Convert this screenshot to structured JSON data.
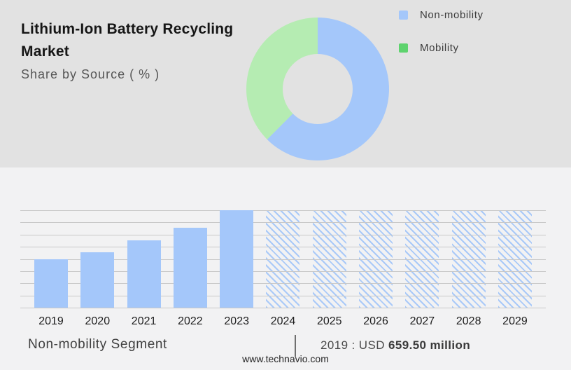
{
  "header": {
    "title": "Lithium-Ion Battery Recycling Market",
    "subtitle": "Share by Source ( % )"
  },
  "legend": {
    "items": [
      {
        "label": "Non-mobility",
        "marker_color": "#a4c7fa"
      },
      {
        "label": "Mobility",
        "marker_color": "#5ed36e"
      }
    ]
  },
  "footer": {
    "segment_label": "Non-mobility Segment",
    "separator": "|",
    "value_prefix": "2019 : USD ",
    "value_bold": "659.50 million",
    "website": "www.technavio.com"
  },
  "colors": {
    "top_background": "#e2e2e2",
    "bottom_background": "#f2f2f3",
    "bar_blue": "#a4c7fa",
    "donut_green": "#b5ecb2",
    "legend_green": "#5ed36e",
    "gridline": "#c8c8c8"
  },
  "chart_data": [
    {
      "type": "pie",
      "subtype": "donut",
      "title": "Lithium-Ion Battery Recycling Market — Share by Source ( % )",
      "labels": [
        "Non-mobility",
        "Mobility"
      ],
      "values_pct_estimated": [
        62.5,
        37.5
      ],
      "slice_colors": [
        "#a4c7fa",
        "#b5ecb2"
      ],
      "legend_position": "right",
      "start_angle_deg_from_top": 0,
      "direction": "clockwise"
    },
    {
      "type": "bar",
      "title": "Non-mobility Segment",
      "categories": [
        "2019",
        "2020",
        "2021",
        "2022",
        "2023",
        "2024",
        "2025",
        "2026",
        "2027",
        "2028",
        "2029"
      ],
      "series": [
        {
          "name": "Non-mobility Segment",
          "values_pct_of_2023": [
            50,
            57,
            69,
            82,
            100,
            null,
            null,
            null,
            null,
            null,
            null
          ]
        }
      ],
      "historical_years": [
        "2019",
        "2020",
        "2021",
        "2022",
        "2023"
      ],
      "forecast_years": [
        "2024",
        "2025",
        "2026",
        "2027",
        "2028",
        "2029"
      ],
      "forecast_bar_style": "hatched, full height placeholder",
      "bar_color": "#a4c7fa",
      "annotation": "2019 : USD 659.50 million",
      "value_2019_usd_million": 659.5,
      "grid": true,
      "grid_intervals": 8,
      "y_axis_tick_labels": "none shown"
    }
  ]
}
